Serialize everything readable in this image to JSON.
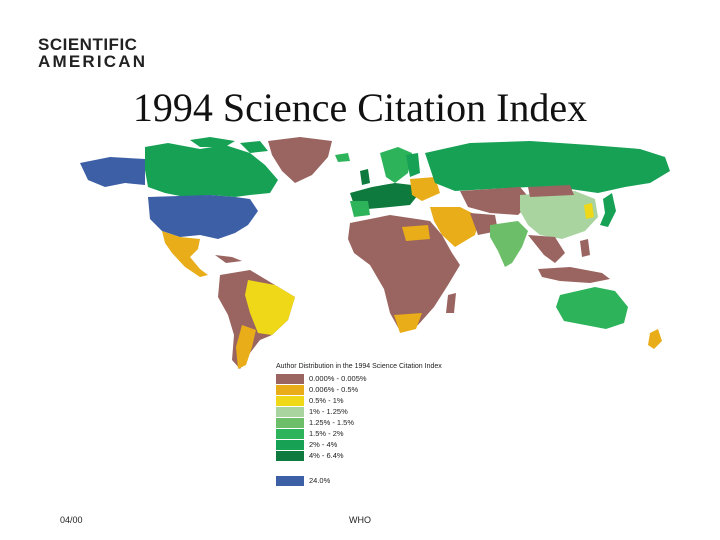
{
  "logo": {
    "line1": "SCIENTIFIC",
    "line2": "AMERICAN"
  },
  "title": "1994 Science Citation Index",
  "legend": {
    "title": "Author Distribution in the 1994 Science Citation Index",
    "items": [
      {
        "label": "0.000% - 0.005%",
        "color": "#9a6560"
      },
      {
        "label": "0.006% - 0.5%",
        "color": "#e8ad18"
      },
      {
        "label": "0.5% - 1%",
        "color": "#efd817"
      },
      {
        "label": "1% - 1.25%",
        "color": "#a9d4a0"
      },
      {
        "label": "1.25% - 1.5%",
        "color": "#6cbf68"
      },
      {
        "label": "1.5% - 2%",
        "color": "#2db35a"
      },
      {
        "label": "2% - 4%",
        "color": "#16a155"
      },
      {
        "label": "4% - 6.4%",
        "color": "#0e7a3e"
      }
    ],
    "us_item": {
      "label": "24.0%",
      "color": "#3c5fa6"
    }
  },
  "footer": {
    "left": "04/00",
    "center": "WHO"
  }
}
